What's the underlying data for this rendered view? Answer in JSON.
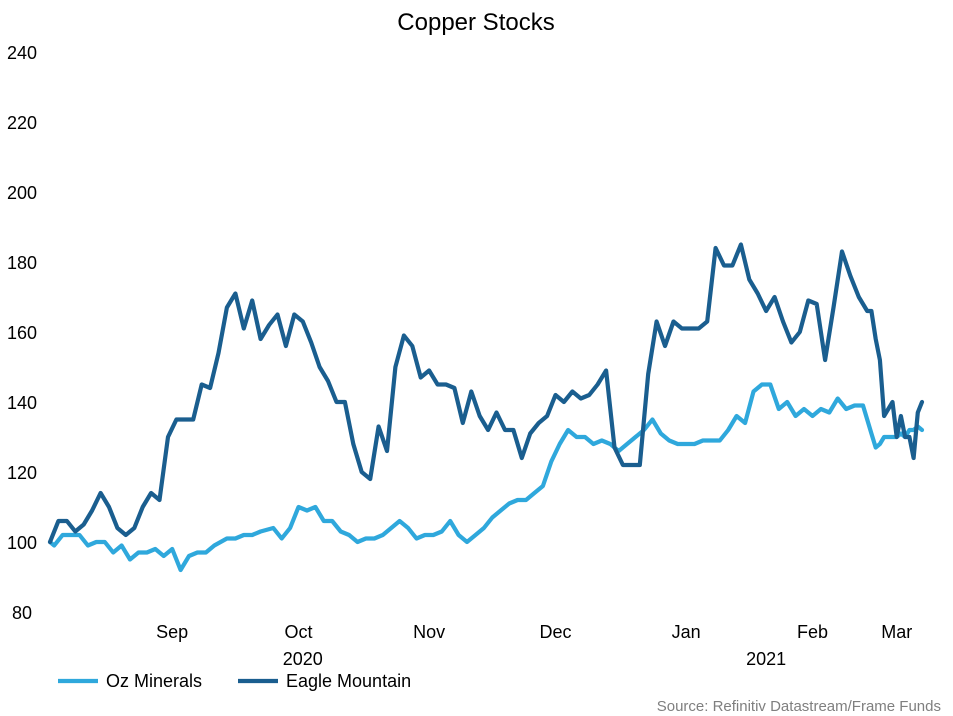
{
  "chart_data": {
    "type": "line",
    "title": "Copper Stocks",
    "xlabel": "",
    "ylabel": "",
    "ylim": [
      80,
      240
    ],
    "yticks": [
      "80",
      "100",
      "120",
      "140",
      "160",
      "180",
      "200",
      "220",
      "240"
    ],
    "xlim": [
      "2020-08-17",
      "2021-03-12"
    ],
    "xticks": [
      {
        "label": "Sep",
        "date": "2020-09-15"
      },
      {
        "label": "Oct",
        "date": "2020-10-15"
      },
      {
        "label": "Nov",
        "date": "2020-11-15"
      },
      {
        "label": "Dec",
        "date": "2020-12-15"
      },
      {
        "label": "Jan",
        "date": "2021-01-15"
      },
      {
        "label": "Feb",
        "date": "2021-02-14"
      },
      {
        "label": "Mar",
        "date": "2021-03-06"
      }
    ],
    "year_labels": [
      {
        "label": "2020",
        "date": "2020-10-16"
      },
      {
        "label": "2021",
        "date": "2021-02-03"
      }
    ],
    "grid": false,
    "legend": "bottom-left",
    "series": [
      {
        "name": "Oz Minerals",
        "color": "#2fa8dc",
        "points": [
          [
            "2020-08-17",
            100
          ],
          [
            "2020-08-18",
            99
          ],
          [
            "2020-08-20",
            102
          ],
          [
            "2020-08-22",
            102
          ],
          [
            "2020-08-24",
            102
          ],
          [
            "2020-08-26",
            99
          ],
          [
            "2020-08-28",
            100
          ],
          [
            "2020-08-30",
            100
          ],
          [
            "2020-09-01",
            97
          ],
          [
            "2020-09-03",
            99
          ],
          [
            "2020-09-05",
            95
          ],
          [
            "2020-09-07",
            97
          ],
          [
            "2020-09-09",
            97
          ],
          [
            "2020-09-11",
            98
          ],
          [
            "2020-09-13",
            96
          ],
          [
            "2020-09-15",
            98
          ],
          [
            "2020-09-17",
            92
          ],
          [
            "2020-09-19",
            96
          ],
          [
            "2020-09-21",
            97
          ],
          [
            "2020-09-23",
            97
          ],
          [
            "2020-09-25",
            99
          ],
          [
            "2020-09-28",
            101
          ],
          [
            "2020-09-30",
            101
          ],
          [
            "2020-10-02",
            102
          ],
          [
            "2020-10-04",
            102
          ],
          [
            "2020-10-06",
            103
          ],
          [
            "2020-10-09",
            104
          ],
          [
            "2020-10-11",
            101
          ],
          [
            "2020-10-13",
            104
          ],
          [
            "2020-10-15",
            110
          ],
          [
            "2020-10-17",
            109
          ],
          [
            "2020-10-19",
            110
          ],
          [
            "2020-10-21",
            106
          ],
          [
            "2020-10-23",
            106
          ],
          [
            "2020-10-25",
            103
          ],
          [
            "2020-10-27",
            102
          ],
          [
            "2020-10-29",
            100
          ],
          [
            "2020-10-31",
            101
          ],
          [
            "2020-11-02",
            101
          ],
          [
            "2020-11-04",
            102
          ],
          [
            "2020-11-06",
            104
          ],
          [
            "2020-11-08",
            106
          ],
          [
            "2020-11-10",
            104
          ],
          [
            "2020-11-12",
            101
          ],
          [
            "2020-11-14",
            102
          ],
          [
            "2020-11-16",
            102
          ],
          [
            "2020-11-18",
            103
          ],
          [
            "2020-11-20",
            106
          ],
          [
            "2020-11-22",
            102
          ],
          [
            "2020-11-24",
            100
          ],
          [
            "2020-11-26",
            102
          ],
          [
            "2020-11-28",
            104
          ],
          [
            "2020-11-30",
            107
          ],
          [
            "2020-12-02",
            109
          ],
          [
            "2020-12-04",
            111
          ],
          [
            "2020-12-06",
            112
          ],
          [
            "2020-12-08",
            112
          ],
          [
            "2020-12-10",
            114
          ],
          [
            "2020-12-12",
            116
          ],
          [
            "2020-12-14",
            123
          ],
          [
            "2020-12-16",
            128
          ],
          [
            "2020-12-18",
            132
          ],
          [
            "2020-12-20",
            130
          ],
          [
            "2020-12-22",
            130
          ],
          [
            "2020-12-24",
            128
          ],
          [
            "2020-12-26",
            129
          ],
          [
            "2020-12-28",
            128
          ],
          [
            "2020-12-30",
            126
          ],
          [
            "2021-01-01",
            128
          ],
          [
            "2021-01-03",
            130
          ],
          [
            "2021-01-05",
            132
          ],
          [
            "2021-01-07",
            135
          ],
          [
            "2021-01-09",
            131
          ],
          [
            "2021-01-11",
            129
          ],
          [
            "2021-01-13",
            128
          ],
          [
            "2021-01-15",
            128
          ],
          [
            "2021-01-17",
            128
          ],
          [
            "2021-01-19",
            129
          ],
          [
            "2021-01-21",
            129
          ],
          [
            "2021-01-23",
            129
          ],
          [
            "2021-01-25",
            132
          ],
          [
            "2021-01-27",
            136
          ],
          [
            "2021-01-29",
            134
          ],
          [
            "2021-01-31",
            143
          ],
          [
            "2021-02-02",
            145
          ],
          [
            "2021-02-04",
            145
          ],
          [
            "2021-02-06",
            138
          ],
          [
            "2021-02-08",
            140
          ],
          [
            "2021-02-10",
            136
          ],
          [
            "2021-02-12",
            138
          ],
          [
            "2021-02-14",
            136
          ],
          [
            "2021-02-16",
            138
          ],
          [
            "2021-02-18",
            137
          ],
          [
            "2021-02-20",
            141
          ],
          [
            "2021-02-22",
            138
          ],
          [
            "2021-02-24",
            139
          ],
          [
            "2021-02-26",
            139
          ],
          [
            "2021-02-28",
            131
          ],
          [
            "2021-03-01",
            127
          ],
          [
            "2021-03-02",
            128
          ],
          [
            "2021-03-03",
            130
          ],
          [
            "2021-03-04",
            130
          ],
          [
            "2021-03-05",
            130
          ],
          [
            "2021-03-06",
            130
          ],
          [
            "2021-03-07",
            131
          ],
          [
            "2021-03-08",
            130
          ],
          [
            "2021-03-09",
            132
          ],
          [
            "2021-03-10",
            132
          ],
          [
            "2021-03-11",
            133
          ],
          [
            "2021-03-12",
            132
          ]
        ]
      },
      {
        "name": "Eagle Mountain",
        "color": "#1a5e8f",
        "points": [
          [
            "2020-08-17",
            100
          ],
          [
            "2020-08-19",
            106
          ],
          [
            "2020-08-21",
            106
          ],
          [
            "2020-08-23",
            103
          ],
          [
            "2020-08-25",
            105
          ],
          [
            "2020-08-27",
            109
          ],
          [
            "2020-08-29",
            114
          ],
          [
            "2020-08-31",
            110
          ],
          [
            "2020-09-02",
            104
          ],
          [
            "2020-09-04",
            102
          ],
          [
            "2020-09-06",
            104
          ],
          [
            "2020-09-08",
            110
          ],
          [
            "2020-09-10",
            114
          ],
          [
            "2020-09-12",
            112
          ],
          [
            "2020-09-14",
            130
          ],
          [
            "2020-09-16",
            135
          ],
          [
            "2020-09-18",
            135
          ],
          [
            "2020-09-20",
            135
          ],
          [
            "2020-09-22",
            145
          ],
          [
            "2020-09-24",
            144
          ],
          [
            "2020-09-26",
            154
          ],
          [
            "2020-09-28",
            167
          ],
          [
            "2020-09-30",
            171
          ],
          [
            "2020-10-02",
            161
          ],
          [
            "2020-10-04",
            169
          ],
          [
            "2020-10-06",
            158
          ],
          [
            "2020-10-08",
            162
          ],
          [
            "2020-10-10",
            165
          ],
          [
            "2020-10-12",
            156
          ],
          [
            "2020-10-14",
            165
          ],
          [
            "2020-10-16",
            163
          ],
          [
            "2020-10-18",
            157
          ],
          [
            "2020-10-20",
            150
          ],
          [
            "2020-10-22",
            146
          ],
          [
            "2020-10-24",
            140
          ],
          [
            "2020-10-26",
            140
          ],
          [
            "2020-10-28",
            128
          ],
          [
            "2020-10-30",
            120
          ],
          [
            "2020-11-01",
            118
          ],
          [
            "2020-11-03",
            133
          ],
          [
            "2020-11-05",
            126
          ],
          [
            "2020-11-07",
            150
          ],
          [
            "2020-11-09",
            159
          ],
          [
            "2020-11-11",
            156
          ],
          [
            "2020-11-13",
            147
          ],
          [
            "2020-11-15",
            149
          ],
          [
            "2020-11-17",
            145
          ],
          [
            "2020-11-19",
            145
          ],
          [
            "2020-11-21",
            144
          ],
          [
            "2020-11-23",
            134
          ],
          [
            "2020-11-25",
            143
          ],
          [
            "2020-11-27",
            136
          ],
          [
            "2020-11-29",
            132
          ],
          [
            "2020-12-01",
            137
          ],
          [
            "2020-12-03",
            132
          ],
          [
            "2020-12-05",
            132
          ],
          [
            "2020-12-07",
            124
          ],
          [
            "2020-12-09",
            131
          ],
          [
            "2020-12-11",
            134
          ],
          [
            "2020-12-13",
            136
          ],
          [
            "2020-12-15",
            142
          ],
          [
            "2020-12-17",
            140
          ],
          [
            "2020-12-19",
            143
          ],
          [
            "2020-12-21",
            141
          ],
          [
            "2020-12-23",
            142
          ],
          [
            "2020-12-25",
            145
          ],
          [
            "2020-12-27",
            149
          ],
          [
            "2020-12-29",
            127
          ],
          [
            "2020-12-31",
            122
          ],
          [
            "2021-01-02",
            122
          ],
          [
            "2021-01-04",
            122
          ],
          [
            "2021-01-06",
            148
          ],
          [
            "2021-01-08",
            163
          ],
          [
            "2021-01-10",
            156
          ],
          [
            "2021-01-12",
            163
          ],
          [
            "2021-01-14",
            161
          ],
          [
            "2021-01-16",
            161
          ],
          [
            "2021-01-18",
            161
          ],
          [
            "2021-01-20",
            163
          ],
          [
            "2021-01-22",
            184
          ],
          [
            "2021-01-24",
            179
          ],
          [
            "2021-01-26",
            179
          ],
          [
            "2021-01-28",
            185
          ],
          [
            "2021-01-30",
            175
          ],
          [
            "2021-02-01",
            171
          ],
          [
            "2021-02-03",
            166
          ],
          [
            "2021-02-05",
            170
          ],
          [
            "2021-02-07",
            163
          ],
          [
            "2021-02-09",
            157
          ],
          [
            "2021-02-11",
            160
          ],
          [
            "2021-02-13",
            169
          ],
          [
            "2021-02-15",
            168
          ],
          [
            "2021-02-17",
            152
          ],
          [
            "2021-02-19",
            167
          ],
          [
            "2021-02-21",
            183
          ],
          [
            "2021-02-23",
            176
          ],
          [
            "2021-02-25",
            170
          ],
          [
            "2021-02-27",
            166
          ],
          [
            "2021-02-28",
            166
          ],
          [
            "2021-03-01",
            158
          ],
          [
            "2021-03-02",
            152
          ],
          [
            "2021-03-03",
            136
          ],
          [
            "2021-03-04",
            138
          ],
          [
            "2021-03-05",
            140
          ],
          [
            "2021-03-06",
            130
          ],
          [
            "2021-03-07",
            136
          ],
          [
            "2021-03-08",
            130
          ],
          [
            "2021-03-09",
            130
          ],
          [
            "2021-03-10",
            124
          ],
          [
            "2021-03-11",
            137
          ],
          [
            "2021-03-12",
            140
          ]
        ]
      }
    ],
    "source": "Source: Refinitiv Datastream/Frame Funds"
  }
}
